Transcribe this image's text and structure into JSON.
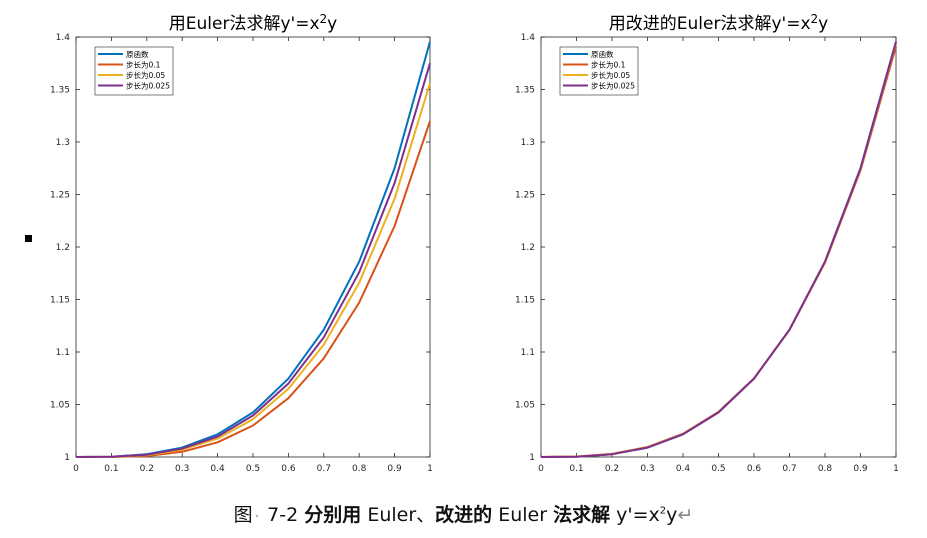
{
  "chart_data": [
    {
      "type": "line",
      "title": "用Euler法求解y'=x2y",
      "title_parts": [
        "用Euler法求解y'=x",
        "2",
        "y"
      ],
      "xlabel": "",
      "ylabel": "",
      "xlim": [
        0,
        1
      ],
      "ylim": [
        1,
        1.4
      ],
      "x_ticks": [
        "0",
        "0.1",
        "0.2",
        "0.3",
        "0.4",
        "0.5",
        "0.6",
        "0.7",
        "0.8",
        "0.9",
        "1"
      ],
      "y_ticks": [
        "1",
        "1.05",
        "1.1",
        "1.15",
        "1.2",
        "1.25",
        "1.3",
        "1.35",
        "1.4"
      ],
      "grid": false,
      "legend_position": "top-left",
      "series": [
        {
          "name": "原函数",
          "color": "#0072BD",
          "x": [
            0,
            0.1,
            0.2,
            0.3,
            0.4,
            0.5,
            0.6,
            0.7,
            0.8,
            0.9,
            1.0
          ],
          "y": [
            1.0,
            1.0003,
            1.0027,
            1.009,
            1.0216,
            1.0425,
            1.0747,
            1.1212,
            1.1861,
            1.2751,
            1.3956
          ]
        },
        {
          "name": "步长为0.1",
          "color": "#D95319",
          "x": [
            0,
            0.1,
            0.2,
            0.3,
            0.4,
            0.5,
            0.6,
            0.7,
            0.8,
            0.9,
            1.0
          ],
          "y": [
            1.0,
            1.0,
            1.001,
            1.005,
            1.014,
            1.03,
            1.056,
            1.094,
            1.147,
            1.22,
            1.32
          ]
        },
        {
          "name": "步长为0.05",
          "color": "#EDB120",
          "x": [
            0,
            0.1,
            0.2,
            0.3,
            0.4,
            0.5,
            0.6,
            0.7,
            0.8,
            0.9,
            1.0
          ],
          "y": [
            1.0,
            1.0002,
            1.0018,
            1.007,
            1.0175,
            1.036,
            1.065,
            1.107,
            1.166,
            1.246,
            1.356
          ]
        },
        {
          "name": "步长为0.025",
          "color": "#7E2F8E",
          "x": [
            0,
            0.1,
            0.2,
            0.3,
            0.4,
            0.5,
            0.6,
            0.7,
            0.8,
            0.9,
            1.0
          ],
          "y": [
            1.0,
            1.0003,
            1.0022,
            1.008,
            1.0195,
            1.0395,
            1.07,
            1.114,
            1.176,
            1.261,
            1.375
          ]
        }
      ]
    },
    {
      "type": "line",
      "title": "用改进的Euler法求解y'=x2y",
      "title_parts": [
        "用改进的Euler法求解y'=x",
        "2",
        "y"
      ],
      "xlabel": "",
      "ylabel": "",
      "xlim": [
        0,
        1
      ],
      "ylim": [
        1,
        1.4
      ],
      "x_ticks": [
        "0",
        "0.1",
        "0.2",
        "0.3",
        "0.4",
        "0.5",
        "0.6",
        "0.7",
        "0.8",
        "0.9",
        "1"
      ],
      "y_ticks": [
        "1",
        "1.05",
        "1.1",
        "1.15",
        "1.2",
        "1.25",
        "1.3",
        "1.35",
        "1.4"
      ],
      "grid": false,
      "legend_position": "top-left",
      "series": [
        {
          "name": "原函数",
          "color": "#0072BD",
          "x": [
            0,
            0.1,
            0.2,
            0.3,
            0.4,
            0.5,
            0.6,
            0.7,
            0.8,
            0.9,
            1.0
          ],
          "y": [
            1.0,
            1.0003,
            1.0027,
            1.009,
            1.0216,
            1.0425,
            1.0747,
            1.1212,
            1.1861,
            1.2751,
            1.3956
          ]
        },
        {
          "name": "步长为0.1",
          "color": "#D95319",
          "x": [
            0,
            0.1,
            0.2,
            0.3,
            0.4,
            0.5,
            0.6,
            0.7,
            0.8,
            0.9,
            1.0
          ],
          "y": [
            1.0,
            1.0005,
            1.003,
            1.0095,
            1.0222,
            1.043,
            1.075,
            1.121,
            1.185,
            1.273,
            1.391
          ]
        },
        {
          "name": "步长为0.05",
          "color": "#EDB120",
          "x": [
            0,
            0.1,
            0.2,
            0.3,
            0.4,
            0.5,
            0.6,
            0.7,
            0.8,
            0.9,
            1.0
          ],
          "y": [
            1.0,
            1.0004,
            1.0028,
            1.0092,
            1.0218,
            1.0427,
            1.0748,
            1.1211,
            1.1857,
            1.2745,
            1.3945
          ]
        },
        {
          "name": "步长为0.025",
          "color": "#7E2F8E",
          "x": [
            0,
            0.1,
            0.2,
            0.3,
            0.4,
            0.5,
            0.6,
            0.7,
            0.8,
            0.9,
            1.0
          ],
          "y": [
            1.0,
            1.0003,
            1.0027,
            1.009,
            1.0216,
            1.0425,
            1.0747,
            1.1212,
            1.186,
            1.275,
            1.3953
          ]
        }
      ]
    }
  ],
  "caption": {
    "prefix": "图",
    "dot": "·",
    "number": "7-2",
    "part1": "分别用",
    "euler1": "Euler、",
    "part2": "改进的",
    "euler2": "Euler",
    "part3": "法求解",
    "eq_a": "y'=x",
    "eq_sup": "2",
    "eq_b": "y",
    "end_mark": "↵"
  }
}
